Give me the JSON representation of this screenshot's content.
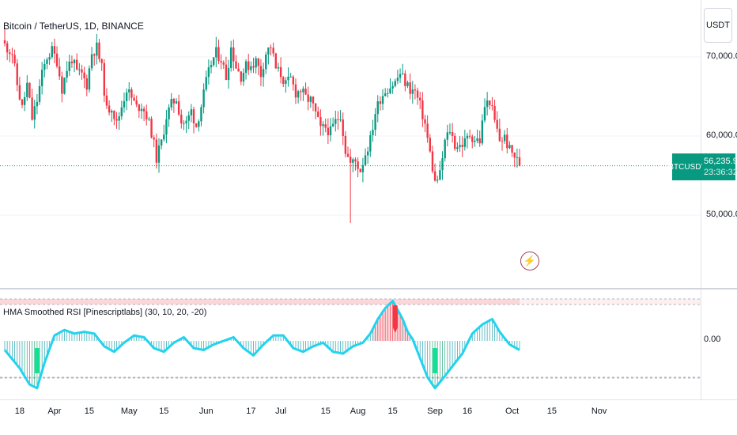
{
  "header": {
    "title": "Bitcoin / TetherUS, 1D, BINANCE"
  },
  "currency_button": {
    "label": "USDT"
  },
  "price_scale": {
    "labels": [
      "70,000.00",
      "60,000.00",
      "50,000.00"
    ],
    "current_symbol": "BTCUSDT",
    "current_price": "56,235.99",
    "countdown": "23:36:32"
  },
  "indicator": {
    "title": "HMA Smoothed RSI [Pinescriptlabs] (30, 10, 20, -20)",
    "zero_label": "0.00",
    "overbought": 20,
    "oversold": -20
  },
  "x_axis": {
    "labels": [
      "18",
      "Apr",
      "15",
      "May",
      "15",
      "Jun",
      "17",
      "Jul",
      "15",
      "Aug",
      "15",
      "Sep",
      "16",
      "Oct",
      "15",
      "Nov"
    ]
  },
  "colors": {
    "up": "#089981",
    "down": "#f23645",
    "line": "#22d3ee",
    "bg": "#ffffff"
  },
  "icons": {
    "alert": "lightning-icon"
  },
  "chart_data": [
    {
      "type": "candlestick",
      "title": "Bitcoin / TetherUS, 1D, BINANCE",
      "x_unit": "day index (0 = 2024-03-12)",
      "close_series": [
        [
          0,
          71500
        ],
        [
          3,
          70500
        ],
        [
          5,
          66500
        ],
        [
          7,
          63500
        ],
        [
          9,
          66500
        ],
        [
          11,
          62200
        ],
        [
          13,
          64500
        ],
        [
          15,
          67800
        ],
        [
          17,
          70000
        ],
        [
          19,
          70800
        ],
        [
          21,
          69500
        ],
        [
          23,
          66000
        ],
        [
          25,
          68500
        ],
        [
          27,
          69800
        ],
        [
          29,
          68000
        ],
        [
          31,
          67800
        ],
        [
          33,
          66500
        ],
        [
          35,
          70500
        ],
        [
          37,
          71200
        ],
        [
          39,
          68500
        ],
        [
          41,
          63200
        ],
        [
          43,
          63800
        ],
        [
          45,
          61500
        ],
        [
          47,
          63800
        ],
        [
          49,
          66000
        ],
        [
          51,
          64800
        ],
        [
          53,
          63600
        ],
        [
          55,
          63900
        ],
        [
          57,
          62600
        ],
        [
          59,
          60500
        ],
        [
          61,
          57200
        ],
        [
          63,
          59200
        ],
        [
          65,
          62500
        ],
        [
          67,
          64000
        ],
        [
          69,
          64800
        ],
        [
          71,
          61800
        ],
        [
          73,
          61600
        ],
        [
          75,
          63200
        ],
        [
          77,
          61300
        ],
        [
          79,
          63800
        ],
        [
          81,
          66800
        ],
        [
          83,
          69200
        ],
        [
          85,
          70500
        ],
        [
          87,
          69800
        ],
        [
          89,
          67500
        ],
        [
          91,
          71200
        ],
        [
          93,
          68800
        ],
        [
          95,
          67600
        ],
        [
          97,
          68800
        ],
        [
          99,
          69000
        ],
        [
          101,
          69500
        ],
        [
          103,
          67800
        ],
        [
          105,
          70500
        ],
        [
          107,
          71400
        ],
        [
          109,
          68500
        ],
        [
          111,
          67800
        ],
        [
          113,
          66500
        ],
        [
          115,
          67200
        ],
        [
          117,
          65500
        ],
        [
          119,
          65800
        ],
        [
          121,
          64800
        ],
        [
          123,
          64500
        ],
        [
          125,
          62800
        ],
        [
          127,
          60800
        ],
        [
          129,
          61100
        ],
        [
          131,
          60500
        ],
        [
          133,
          61800
        ],
        [
          135,
          62800
        ],
        [
          137,
          58200
        ],
        [
          139,
          56500
        ],
        [
          141,
          56800
        ],
        [
          143,
          55700
        ],
        [
          145,
          57800
        ],
        [
          147,
          59500
        ],
        [
          149,
          63000
        ],
        [
          151,
          64800
        ],
        [
          153,
          65800
        ],
        [
          155,
          66300
        ],
        [
          157,
          66800
        ],
        [
          159,
          67900
        ],
        [
          161,
          66800
        ],
        [
          163,
          65900
        ],
        [
          165,
          65600
        ],
        [
          167,
          63800
        ],
        [
          169,
          61500
        ],
        [
          171,
          57800
        ],
        [
          173,
          54100
        ],
        [
          175,
          55100
        ],
        [
          177,
          59300
        ],
        [
          179,
          60800
        ],
        [
          181,
          58900
        ],
        [
          183,
          58800
        ],
        [
          185,
          59200
        ],
        [
          187,
          60200
        ],
        [
          189,
          59600
        ],
        [
          191,
          59400
        ],
        [
          193,
          63800
        ],
        [
          195,
          64500
        ],
        [
          197,
          61800
        ],
        [
          199,
          59500
        ],
        [
          201,
          59800
        ],
        [
          203,
          58200
        ],
        [
          205,
          57500
        ],
        [
          207,
          56236
        ]
      ],
      "high": 73750,
      "low": 49000,
      "last_close": 56235.99,
      "y_ticks": [
        50000,
        60000,
        70000
      ],
      "ylim": [
        44800,
        77500
      ]
    },
    {
      "type": "line",
      "title": "HMA Smoothed RSI [Pinescriptlabs] (30, 10, 20, -20)",
      "x_unit": "day index (0 = 2024-03-12)",
      "points": [
        [
          0,
          -5
        ],
        [
          6,
          -15
        ],
        [
          10,
          -24
        ],
        [
          13,
          -26
        ],
        [
          16,
          -12
        ],
        [
          20,
          3
        ],
        [
          24,
          6
        ],
        [
          28,
          4
        ],
        [
          32,
          5
        ],
        [
          36,
          4
        ],
        [
          40,
          -3
        ],
        [
          44,
          -6
        ],
        [
          48,
          -1
        ],
        [
          52,
          3
        ],
        [
          56,
          2
        ],
        [
          60,
          -4
        ],
        [
          64,
          -6
        ],
        [
          68,
          -1
        ],
        [
          72,
          2
        ],
        [
          76,
          -4
        ],
        [
          80,
          -5
        ],
        [
          84,
          -2
        ],
        [
          88,
          0
        ],
        [
          92,
          2
        ],
        [
          96,
          -4
        ],
        [
          100,
          -8
        ],
        [
          104,
          -2
        ],
        [
          108,
          3
        ],
        [
          112,
          3
        ],
        [
          116,
          -4
        ],
        [
          120,
          -6
        ],
        [
          124,
          -3
        ],
        [
          128,
          -1
        ],
        [
          132,
          -6
        ],
        [
          136,
          -7
        ],
        [
          140,
          -3
        ],
        [
          144,
          -1
        ],
        [
          147,
          4
        ],
        [
          150,
          12
        ],
        [
          153,
          18
        ],
        [
          156,
          22
        ],
        [
          158,
          17
        ],
        [
          160,
          12
        ],
        [
          162,
          5
        ],
        [
          164,
          1
        ],
        [
          166,
          -6
        ],
        [
          170,
          -20
        ],
        [
          173,
          -26
        ],
        [
          176,
          -21
        ],
        [
          180,
          -14
        ],
        [
          184,
          -7
        ],
        [
          188,
          4
        ],
        [
          192,
          9
        ],
        [
          196,
          12
        ],
        [
          199,
          5
        ],
        [
          203,
          -2
        ],
        [
          207,
          -5
        ]
      ],
      "overbought": 20,
      "oversold": -20,
      "ylim": [
        -36,
        32
      ]
    }
  ],
  "signals": [
    {
      "type": "buy",
      "x": 13
    },
    {
      "type": "sell",
      "x": 157
    },
    {
      "type": "buy",
      "x": 173
    }
  ]
}
